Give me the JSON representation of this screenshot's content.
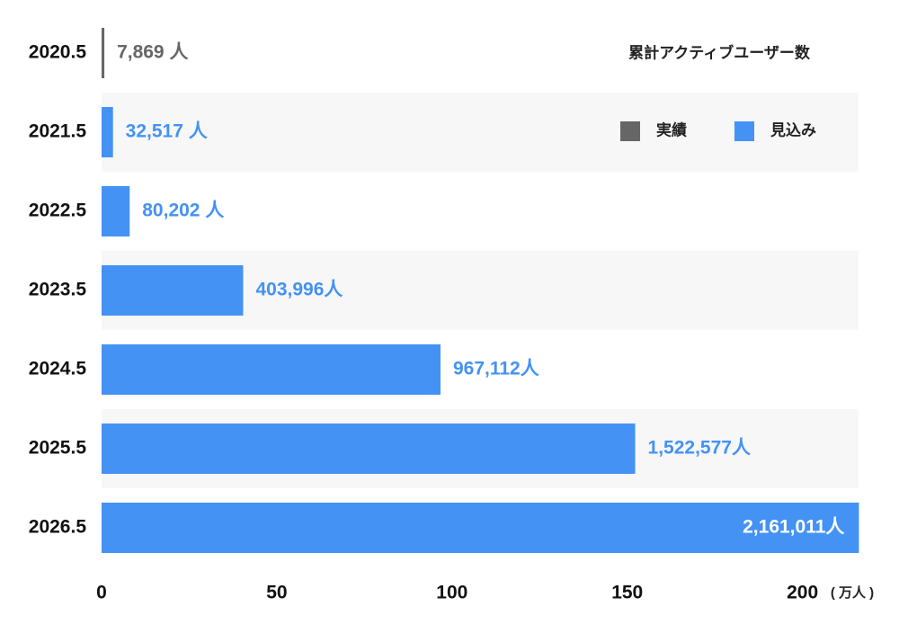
{
  "chart_data": {
    "type": "bar",
    "orientation": "horizontal",
    "legend_title": "累計アクティブユーザー数",
    "x_unit": "( 万人 )",
    "categories": [
      "2020.5",
      "2021.5",
      "2022.5",
      "2023.5",
      "2024.5",
      "2025.5",
      "2026.5"
    ],
    "series": [
      {
        "name": "実績",
        "color": "#666666",
        "values": [
          0.7869,
          null,
          null,
          null,
          null,
          null,
          null
        ],
        "value_labels": [
          "7,869 人",
          null,
          null,
          null,
          null,
          null,
          null
        ]
      },
      {
        "name": "見込み",
        "color": "#4492f4",
        "values": [
          null,
          3.2517,
          8.0202,
          40.3996,
          96.7112,
          152.2577,
          216.1011
        ],
        "value_labels": [
          null,
          "32,517 人",
          "80,202 人",
          "403,996人",
          "967,112人",
          "1,522,577人",
          "2,161,011人"
        ]
      }
    ],
    "xlim": [
      0,
      216
    ],
    "xticks": [
      0,
      50,
      100,
      150,
      200
    ],
    "legend": "upper right"
  }
}
